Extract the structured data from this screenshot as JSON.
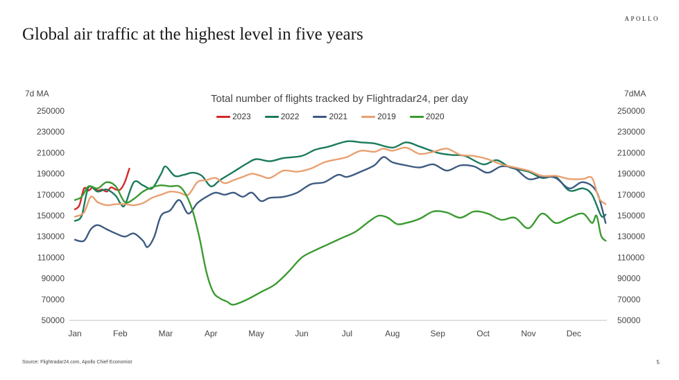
{
  "brand": "APOLLO",
  "headline": "Global air traffic at the highest level in five years",
  "footer": {
    "source": "Source: Flightradar24.com, Apollo Chief Economist",
    "page_number": "5"
  },
  "chart_data": {
    "type": "line",
    "title": "Total number of flights tracked by Flightradar24, per day",
    "ylabel_left": "7d MA",
    "ylabel_right": "7dMA",
    "ylim": [
      50000,
      250000
    ],
    "yticks": [
      "250000",
      "230000",
      "210000",
      "190000",
      "170000",
      "150000",
      "130000",
      "110000",
      "90000",
      "70000",
      "50000"
    ],
    "ytick_values": [
      250000,
      230000,
      210000,
      190000,
      170000,
      150000,
      130000,
      110000,
      90000,
      70000,
      50000
    ],
    "xlim": [
      0,
      11.7
    ],
    "xticks": [
      "Jan",
      "Feb",
      "Mar",
      "Apr",
      "May",
      "Jun",
      "Jul",
      "Aug",
      "Sep",
      "Oct",
      "Nov",
      "Dec"
    ],
    "xtick_positions": [
      0,
      1,
      2,
      3,
      4,
      5,
      6,
      7,
      8,
      9,
      10,
      11
    ],
    "grid": false,
    "legend_position": "top-center",
    "series": [
      {
        "name": "2023",
        "color": "#d62728",
        "x": [
          0,
          0.1,
          0.2,
          0.3,
          0.4,
          0.5,
          0.6,
          0.7,
          0.8,
          0.9,
          1.0,
          1.1,
          1.2
        ],
        "values": [
          156000,
          160000,
          176000,
          174000,
          177000,
          174000,
          175000,
          173000,
          177000,
          175000,
          175000,
          182000,
          195000
        ]
      },
      {
        "name": "2022",
        "color": "#1a7a5c",
        "x": [
          0,
          0.15,
          0.3,
          0.5,
          0.7,
          0.9,
          1.0,
          1.1,
          1.3,
          1.5,
          1.7,
          1.9,
          2.0,
          2.2,
          2.4,
          2.6,
          2.8,
          3.0,
          3.2,
          3.5,
          3.8,
          4.0,
          4.3,
          4.6,
          5.0,
          5.3,
          5.6,
          6.0,
          6.3,
          6.6,
          7.0,
          7.3,
          7.6,
          8.0,
          8.3,
          8.6,
          9.0,
          9.3,
          9.6,
          10.0,
          10.3,
          10.6,
          10.9,
          11.2,
          11.4,
          11.6,
          11.7
        ],
        "values": [
          145000,
          150000,
          177000,
          173000,
          175000,
          169000,
          162000,
          160000,
          182000,
          179000,
          176000,
          190000,
          197000,
          188000,
          189000,
          191000,
          188000,
          178000,
          184000,
          192000,
          200000,
          204000,
          202000,
          205000,
          207000,
          213000,
          216000,
          221000,
          220000,
          219000,
          215000,
          220000,
          216000,
          210000,
          208000,
          207000,
          199000,
          203000,
          196000,
          192000,
          186000,
          187000,
          174000,
          176000,
          170000,
          150000,
          151000
        ]
      },
      {
        "name": "2021",
        "color": "#3d5a80",
        "x": [
          0,
          0.2,
          0.35,
          0.5,
          0.7,
          0.9,
          1.1,
          1.3,
          1.5,
          1.6,
          1.75,
          1.9,
          2.1,
          2.3,
          2.5,
          2.7,
          2.9,
          3.1,
          3.3,
          3.5,
          3.7,
          3.9,
          4.1,
          4.3,
          4.6,
          4.9,
          5.2,
          5.5,
          5.8,
          6.0,
          6.3,
          6.6,
          6.8,
          7.0,
          7.3,
          7.6,
          7.9,
          8.2,
          8.5,
          8.8,
          9.1,
          9.4,
          9.7,
          10.0,
          10.3,
          10.6,
          10.9,
          11.2,
          11.5,
          11.7
        ],
        "values": [
          127000,
          126000,
          137000,
          141000,
          137000,
          133000,
          130000,
          133000,
          126000,
          120000,
          130000,
          150000,
          155000,
          165000,
          152000,
          162000,
          168000,
          172000,
          170000,
          172000,
          168000,
          172000,
          164000,
          167000,
          168000,
          172000,
          180000,
          182000,
          189000,
          187000,
          192000,
          198000,
          206000,
          201000,
          198000,
          196000,
          199000,
          193000,
          198000,
          197000,
          191000,
          197000,
          195000,
          185000,
          187000,
          186000,
          176000,
          182000,
          173000,
          143000
        ]
      },
      {
        "name": "2019",
        "color": "#e8a070",
        "x": [
          0,
          0.2,
          0.35,
          0.5,
          0.7,
          0.9,
          1.1,
          1.3,
          1.5,
          1.7,
          1.9,
          2.1,
          2.3,
          2.5,
          2.7,
          2.9,
          3.1,
          3.3,
          3.5,
          3.7,
          3.9,
          4.1,
          4.3,
          4.6,
          4.9,
          5.2,
          5.5,
          5.8,
          6.0,
          6.3,
          6.6,
          6.8,
          7.0,
          7.3,
          7.6,
          7.9,
          8.2,
          8.5,
          8.8,
          9.1,
          9.4,
          9.7,
          10.0,
          10.3,
          10.6,
          10.9,
          11.2,
          11.4,
          11.55,
          11.7
        ],
        "values": [
          149000,
          153000,
          168000,
          163000,
          160000,
          161000,
          161000,
          160000,
          162000,
          167000,
          170000,
          173000,
          172000,
          170000,
          182000,
          184000,
          186000,
          181000,
          184000,
          187000,
          190000,
          188000,
          186000,
          193000,
          192000,
          195000,
          201000,
          204000,
          206000,
          212000,
          211000,
          214000,
          212000,
          215000,
          209000,
          211000,
          214000,
          208000,
          207000,
          204000,
          199000,
          196000,
          193000,
          188000,
          188000,
          185000,
          185000,
          186000,
          167000,
          161000
        ]
      },
      {
        "name": "2020",
        "color": "#3a9a30",
        "x": [
          0,
          0.15,
          0.3,
          0.5,
          0.7,
          0.9,
          1.1,
          1.3,
          1.5,
          1.7,
          1.9,
          2.1,
          2.3,
          2.45,
          2.6,
          2.75,
          2.9,
          3.05,
          3.2,
          3.35,
          3.5,
          3.8,
          4.1,
          4.4,
          4.7,
          5.0,
          5.3,
          5.6,
          5.9,
          6.2,
          6.5,
          6.7,
          6.9,
          7.1,
          7.3,
          7.6,
          7.9,
          8.2,
          8.5,
          8.8,
          9.1,
          9.4,
          9.7,
          10.0,
          10.3,
          10.6,
          10.9,
          11.2,
          11.4,
          11.5,
          11.6,
          11.7
        ],
        "values": [
          165000,
          168000,
          178000,
          176000,
          182000,
          178000,
          163000,
          166000,
          173000,
          177000,
          179000,
          178000,
          178000,
          170000,
          154000,
          128000,
          96000,
          77000,
          71000,
          68000,
          65000,
          70000,
          77000,
          84000,
          96000,
          110000,
          117000,
          123000,
          129000,
          135000,
          145000,
          150000,
          148000,
          142000,
          143000,
          147000,
          154000,
          153000,
          148000,
          154000,
          152000,
          146000,
          148000,
          138000,
          152000,
          143000,
          148000,
          152000,
          143000,
          150000,
          131000,
          126000
        ]
      }
    ]
  }
}
